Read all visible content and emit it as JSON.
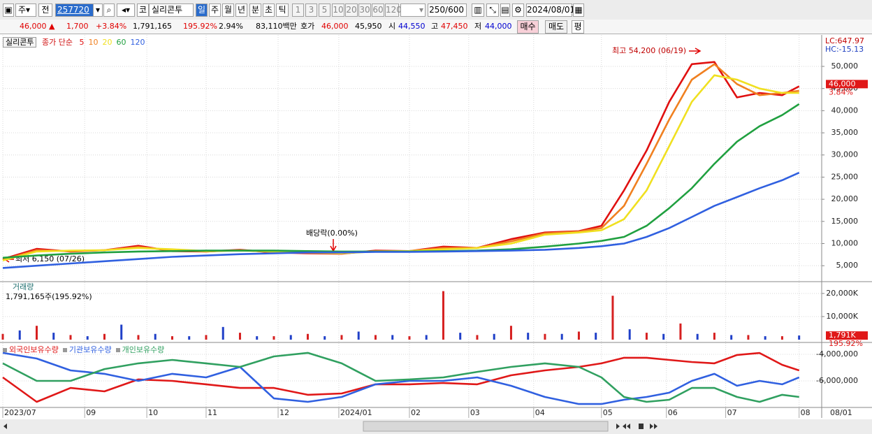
{
  "toolbar": {
    "period_select": "주",
    "prev": "전",
    "code": "257720",
    "market": "코",
    "name": "실리콘투",
    "periods": [
      "일",
      "주",
      "월",
      "년",
      "분",
      "초",
      "틱"
    ],
    "intervals": [
      "1",
      "3",
      "5",
      "10",
      "20",
      "30",
      "60",
      "120"
    ],
    "count": "250",
    "max": "/600",
    "date": "2024/08/01"
  },
  "info_bar": {
    "price": "46,000 ▲",
    "change": "1,700",
    "change_pct": "+3.84%",
    "volume": "1,791,165",
    "volume_ratio": "195.92%",
    "turnover": "2.94%",
    "amount": "83,110백만",
    "quote_label": "호가",
    "ask": "46,000",
    "bid": "45,950",
    "open_label": "시",
    "open": "44,550",
    "high_label": "고",
    "high": "47,450",
    "low_label": "저",
    "low": "44,000",
    "buy": "매수",
    "sell": "매도",
    "avg": "평"
  },
  "chart_data": [
    {
      "type": "line",
      "name": "실리콘투",
      "series_label": "종가 단순",
      "x": [
        0,
        12,
        24,
        36,
        48,
        60,
        72,
        84,
        96,
        108,
        120,
        132,
        144,
        156,
        168,
        180,
        192,
        204,
        212,
        220,
        228,
        236,
        244,
        252,
        260,
        268,
        276,
        282
      ],
      "series": [
        {
          "name": "5",
          "color": "#e01010",
          "values": [
            6500,
            8800,
            8200,
            8500,
            9500,
            8300,
            8200,
            8600,
            8000,
            7800,
            7700,
            8400,
            8300,
            9300,
            9000,
            11000,
            12500,
            12800,
            14000,
            22000,
            31000,
            42000,
            50500,
            51000,
            43000,
            44000,
            43500,
            45500
          ]
        },
        {
          "name": "10",
          "color": "#f08020",
          "values": [
            6300,
            8500,
            8300,
            8500,
            9200,
            8500,
            8200,
            8500,
            8100,
            7900,
            7800,
            8300,
            8300,
            9000,
            9000,
            10500,
            12300,
            12700,
            13500,
            18500,
            28000,
            38000,
            47000,
            50500,
            46000,
            43500,
            44000,
            44500
          ]
        },
        {
          "name": "20",
          "color": "#f0e020",
          "values": [
            6200,
            8200,
            8400,
            8500,
            9000,
            8700,
            8300,
            8400,
            8200,
            8000,
            7800,
            8200,
            8300,
            8700,
            9000,
            10000,
            12000,
            12500,
            13000,
            15500,
            22000,
            32000,
            42000,
            48000,
            47000,
            45000,
            44000,
            44000
          ]
        },
        {
          "name": "60",
          "color": "#20a040",
          "values": [
            6800,
            7300,
            7700,
            8000,
            8200,
            8300,
            8400,
            8400,
            8400,
            8300,
            8200,
            8200,
            8200,
            8300,
            8400,
            8700,
            9300,
            10000,
            10600,
            11500,
            14000,
            18000,
            22500,
            28000,
            33000,
            36500,
            39000,
            41500
          ]
        },
        {
          "name": "120",
          "color": "#3060e0",
          "values": [
            4500,
            5000,
            5500,
            6000,
            6500,
            7000,
            7300,
            7600,
            7800,
            8000,
            8000,
            8100,
            8100,
            8200,
            8300,
            8400,
            8600,
            9000,
            9400,
            10000,
            11500,
            13500,
            16000,
            18500,
            20500,
            22500,
            24300,
            26000
          ]
        }
      ],
      "xlim": [
        0,
        290
      ],
      "ylim": [
        1400,
        57100
      ],
      "yticks": [
        {
          "value": 5000,
          "label": "5,000"
        },
        {
          "value": 10000,
          "label": "10,000"
        },
        {
          "value": 15000,
          "label": "15,000"
        },
        {
          "value": 20000,
          "label": "20,000"
        },
        {
          "value": 25000,
          "label": "25,000"
        },
        {
          "value": 30000,
          "label": "30,000"
        },
        {
          "value": 35000,
          "label": "35,000"
        },
        {
          "value": 40000,
          "label": "40,000"
        },
        {
          "value": 45000,
          "label": "45,000"
        },
        {
          "value": 50000,
          "label": "50,000"
        }
      ],
      "grid": true,
      "annotations": [
        "최고 54,200 (06/19)",
        "배당락(0.00%)",
        "최저 6,150 (07/26)"
      ],
      "lc": "LC:647.97",
      "hc": "HC:-15.13",
      "last_value": {
        "value": 46000,
        "label": "46,000"
      },
      "last_change": "3.84%"
    },
    {
      "type": "bar",
      "title": "거래량",
      "subtitle": "1,791,165주(195.92%)",
      "x": [
        0,
        6,
        12,
        18,
        24,
        30,
        36,
        42,
        48,
        54,
        60,
        66,
        72,
        78,
        84,
        90,
        96,
        102,
        108,
        114,
        120,
        126,
        132,
        138,
        144,
        150,
        156,
        162,
        168,
        174,
        180,
        186,
        192,
        198,
        204,
        210,
        216,
        222,
        228,
        234,
        240,
        246,
        252,
        258,
        264,
        270,
        276,
        282
      ],
      "values": [
        2500,
        4000,
        6000,
        3000,
        2000,
        1500,
        2500,
        6500,
        2000,
        2500,
        1500,
        1500,
        2000,
        5500,
        3000,
        1500,
        1500,
        2000,
        2500,
        1500,
        2000,
        3500,
        2000,
        2000,
        1500,
        2000,
        21000,
        3000,
        2000,
        2500,
        6000,
        3000,
        2500,
        2500,
        3500,
        3000,
        19000,
        4500,
        3000,
        2500,
        7000,
        2500,
        3000,
        2000,
        2000,
        1500,
        1500,
        1791
      ],
      "colors": [
        "#d62020",
        "#2040c8"
      ],
      "xlim": [
        0,
        290
      ],
      "ylim": [
        -1200,
        24800
      ],
      "yticks": [
        {
          "value": 10000,
          "label": "10,000K"
        },
        {
          "value": 20000,
          "label": "20,000K"
        }
      ],
      "grid": true,
      "last_value": {
        "value": 1791,
        "label": "1,791K"
      },
      "last_ratio": "195.92%"
    },
    {
      "type": "line",
      "x": [
        0,
        12,
        24,
        36,
        48,
        60,
        72,
        84,
        96,
        108,
        120,
        132,
        144,
        156,
        168,
        180,
        192,
        204,
        212,
        220,
        228,
        236,
        244,
        252,
        260,
        268,
        276,
        282
      ],
      "series": [
        {
          "name": "외국인보유수량",
          "color": "#e01818",
          "values": [
            -5740000,
            -7580000,
            -6530000,
            -6790000,
            -5890000,
            -6000000,
            -6260000,
            -6530000,
            -6530000,
            -7050000,
            -6950000,
            -6260000,
            -6260000,
            -6160000,
            -6260000,
            -5580000,
            -5210000,
            -4950000,
            -4680000,
            -4260000,
            -4260000,
            -4420000,
            -4580000,
            -4680000,
            -4050000,
            -3900000,
            -4790000,
            -5210000
          ]
        },
        {
          "name": "기관보유수량",
          "color": "#3060e0",
          "values": [
            -3890000,
            -4320000,
            -5210000,
            -5470000,
            -6000000,
            -5470000,
            -5740000,
            -4950000,
            -7320000,
            -7580000,
            -7210000,
            -6260000,
            -6000000,
            -6000000,
            -5740000,
            -6370000,
            -7210000,
            -7740000,
            -7740000,
            -7420000,
            -7210000,
            -6890000,
            -6000000,
            -5470000,
            -6370000,
            -6000000,
            -6260000,
            -5740000
          ]
        },
        {
          "name": "개인보유수량",
          "color": "#30a060",
          "values": [
            -4680000,
            -6000000,
            -6000000,
            -5110000,
            -4680000,
            -4420000,
            -4680000,
            -4950000,
            -4160000,
            -3890000,
            -4680000,
            -6000000,
            -5890000,
            -5740000,
            -5320000,
            -4950000,
            -4680000,
            -4950000,
            -5740000,
            -7210000,
            -7580000,
            -7420000,
            -6530000,
            -6530000,
            -7210000,
            -7580000,
            -7050000,
            -7210000
          ]
        }
      ],
      "xlim": [
        0,
        290
      ],
      "ylim": [
        -8000000,
        -3160000
      ],
      "yticks": [
        {
          "value": -6000000,
          "label": "-6,000,000"
        },
        {
          "value": -4000000,
          "label": "-4,000,000"
        }
      ],
      "grid": true,
      "xticks": [
        {
          "value": 0,
          "label": "2023/07"
        },
        {
          "value": 29,
          "label": "09"
        },
        {
          "value": 51,
          "label": "10"
        },
        {
          "value": 72,
          "label": "11"
        },
        {
          "value": 97.5,
          "label": "12"
        },
        {
          "value": 119,
          "label": "2024/01"
        },
        {
          "value": 144,
          "label": "02"
        },
        {
          "value": 165,
          "label": "03"
        },
        {
          "value": 188,
          "label": "04"
        },
        {
          "value": 212,
          "label": "05"
        },
        {
          "value": 235,
          "label": "06"
        },
        {
          "value": 256,
          "label": "07"
        },
        {
          "value": 282,
          "label": "08"
        }
      ],
      "x_end_label": "08/01"
    }
  ]
}
